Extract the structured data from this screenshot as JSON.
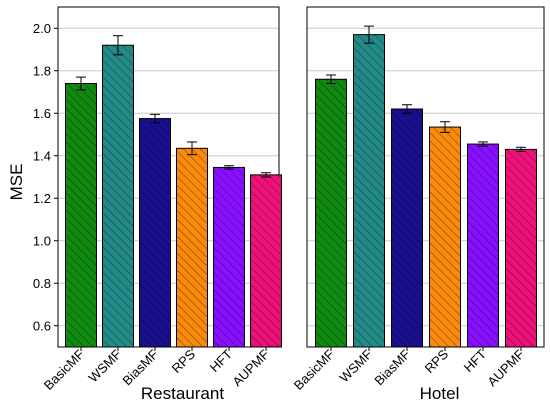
{
  "chart_data": {
    "type": "bar",
    "ylabel": "MSE",
    "ylim": [
      0.5,
      2.1
    ],
    "yticks": [
      0.6,
      0.8,
      1.0,
      1.2,
      1.4,
      1.6,
      1.8,
      2.0
    ],
    "ytick_labels": [
      "0.6",
      "0.8",
      "1.0",
      "1.2",
      "1.4",
      "1.6",
      "1.8",
      "2.0"
    ],
    "grid": "horizontal",
    "bar_pattern": "diagonal-hatch",
    "categories": [
      "BasicMF",
      "WSMF",
      "BiasMF",
      "RPS",
      "HFT",
      "AUPMF"
    ],
    "colors": [
      "#118a11",
      "#238a87",
      "#1a0f8f",
      "#f98a0b",
      "#8810ff",
      "#ee117a"
    ],
    "panels": [
      {
        "title": "Restaurant",
        "values": [
          1.74,
          1.92,
          1.575,
          1.435,
          1.345,
          1.31
        ],
        "errors": [
          0.03,
          0.045,
          0.02,
          0.03,
          0.008,
          0.01
        ]
      },
      {
        "title": "Hotel",
        "values": [
          1.76,
          1.97,
          1.62,
          1.535,
          1.455,
          1.43
        ],
        "errors": [
          0.02,
          0.04,
          0.02,
          0.025,
          0.01,
          0.01
        ]
      }
    ]
  }
}
